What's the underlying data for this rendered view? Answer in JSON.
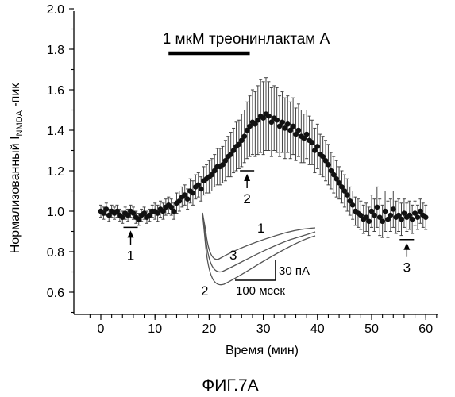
{
  "figure_label": "ФИГ.7А",
  "chart_data": {
    "type": "scatter",
    "title": "",
    "xlabel": "Время (мин)",
    "ylabel": "Нормализованный I",
    "ylabel_sub": "NMDA",
    "ylabel_suffix": " -пик",
    "xlim": [
      -3,
      63
    ],
    "ylim": [
      0.5,
      2.0
    ],
    "xticks": [
      "0",
      "10",
      "20",
      "30",
      "40",
      "50",
      "60"
    ],
    "xtick_values": [
      0,
      10,
      20,
      30,
      40,
      50,
      60
    ],
    "yticks": [
      "0.6",
      "0.8",
      "1.0",
      "1.2",
      "1.4",
      "1.6",
      "1.8",
      "2.0"
    ],
    "ytick_values": [
      0.6,
      0.8,
      1.0,
      1.2,
      1.4,
      1.6,
      1.8,
      2.0
    ],
    "treatment": {
      "label": "1 мкМ треонинлактам А",
      "x_start": 12.5,
      "x_end": 27.5
    },
    "markers": [
      {
        "label": "1",
        "x": 5.5,
        "y": 0.92
      },
      {
        "label": "2",
        "x": 27.0,
        "y": 1.2
      },
      {
        "label": "3",
        "x": 56.5,
        "y": 0.86
      }
    ],
    "inset": {
      "trace_labels": [
        "1",
        "3",
        "2"
      ],
      "scale_current": "30 пА",
      "scale_time": "100 мсек"
    },
    "series": [
      {
        "x": [
          0,
          0.5,
          1,
          1.5,
          2,
          2.5,
          3,
          3.5,
          4,
          4.5,
          5,
          5.5,
          6,
          6.5,
          7,
          7.5,
          8,
          8.5,
          9,
          9.5,
          10,
          10.5,
          11,
          11.5,
          12,
          12.5,
          13,
          13.5,
          14,
          14.5,
          15,
          15.5,
          16,
          16.5,
          17,
          17.5,
          18,
          18.5,
          19,
          19.5,
          20,
          20.5,
          21,
          21.5,
          22,
          22.5,
          23,
          23.5,
          24,
          24.5,
          25,
          25.5,
          26,
          26.5,
          27,
          27.5,
          28,
          28.5,
          29,
          29.5,
          30,
          30.5,
          31,
          31.5,
          32,
          32.5,
          33,
          33.5,
          34,
          34.5,
          35,
          35.5,
          36,
          36.5,
          37,
          37.5,
          38,
          38.5,
          39,
          39.5,
          40,
          40.5,
          41,
          41.5,
          42,
          42.5,
          43,
          43.5,
          44,
          44.5,
          45,
          45.5,
          46,
          46.5,
          47,
          47.5,
          48,
          48.5,
          49,
          49.5,
          50,
          50.5,
          51,
          51.5,
          52,
          52.5,
          53,
          53.5,
          54,
          54.5,
          55,
          55.5,
          56,
          56.5,
          57,
          57.5,
          58,
          58.5,
          59,
          59.5,
          60
        ],
        "y": [
          1.0,
          0.99,
          1.01,
          0.98,
          1.0,
          0.99,
          1.0,
          0.98,
          0.97,
          0.99,
          0.98,
          1.0,
          0.99,
          0.97,
          0.96,
          0.98,
          0.99,
          0.97,
          0.98,
          1.0,
          1.0,
          0.99,
          1.01,
          1.0,
          1.02,
          1.03,
          1.02,
          1.0,
          1.04,
          1.05,
          1.07,
          1.08,
          1.06,
          1.1,
          1.09,
          1.12,
          1.13,
          1.11,
          1.15,
          1.16,
          1.17,
          1.18,
          1.2,
          1.22,
          1.22,
          1.23,
          1.25,
          1.27,
          1.28,
          1.3,
          1.32,
          1.33,
          1.35,
          1.37,
          1.4,
          1.42,
          1.44,
          1.43,
          1.45,
          1.47,
          1.46,
          1.48,
          1.47,
          1.44,
          1.46,
          1.45,
          1.42,
          1.44,
          1.41,
          1.43,
          1.4,
          1.42,
          1.38,
          1.4,
          1.37,
          1.36,
          1.38,
          1.35,
          1.34,
          1.3,
          1.32,
          1.28,
          1.27,
          1.25,
          1.23,
          1.2,
          1.18,
          1.16,
          1.14,
          1.12,
          1.1,
          1.08,
          1.05,
          1.03,
          1.0,
          0.99,
          0.98,
          0.96,
          0.97,
          0.95,
          1.0,
          0.98,
          1.02,
          0.97,
          0.95,
          1.0,
          0.96,
          0.98,
          1.01,
          0.97,
          0.98,
          0.96,
          0.99,
          0.97,
          0.98,
          0.96,
          0.99,
          0.97,
          1.0,
          0.98,
          0.97
        ],
        "err": [
          0.03,
          0.03,
          0.03,
          0.03,
          0.03,
          0.03,
          0.03,
          0.03,
          0.03,
          0.03,
          0.03,
          0.03,
          0.03,
          0.03,
          0.03,
          0.03,
          0.03,
          0.03,
          0.03,
          0.03,
          0.04,
          0.04,
          0.04,
          0.04,
          0.04,
          0.04,
          0.04,
          0.04,
          0.05,
          0.05,
          0.05,
          0.05,
          0.05,
          0.06,
          0.06,
          0.06,
          0.06,
          0.06,
          0.07,
          0.07,
          0.08,
          0.08,
          0.08,
          0.09,
          0.09,
          0.09,
          0.1,
          0.1,
          0.11,
          0.11,
          0.12,
          0.12,
          0.13,
          0.13,
          0.14,
          0.15,
          0.16,
          0.16,
          0.17,
          0.18,
          0.18,
          0.18,
          0.17,
          0.17,
          0.16,
          0.16,
          0.15,
          0.15,
          0.15,
          0.14,
          0.14,
          0.14,
          0.13,
          0.13,
          0.13,
          0.12,
          0.12,
          0.12,
          0.11,
          0.11,
          0.11,
          0.1,
          0.1,
          0.1,
          0.1,
          0.09,
          0.09,
          0.09,
          0.08,
          0.08,
          0.08,
          0.08,
          0.07,
          0.07,
          0.07,
          0.07,
          0.07,
          0.07,
          0.07,
          0.07,
          0.08,
          0.08,
          0.1,
          0.09,
          0.08,
          0.1,
          0.09,
          0.08,
          0.09,
          0.08,
          0.08,
          0.08,
          0.07,
          0.07,
          0.07,
          0.07,
          0.06,
          0.06,
          0.06,
          0.06,
          0.06
        ]
      }
    ]
  }
}
